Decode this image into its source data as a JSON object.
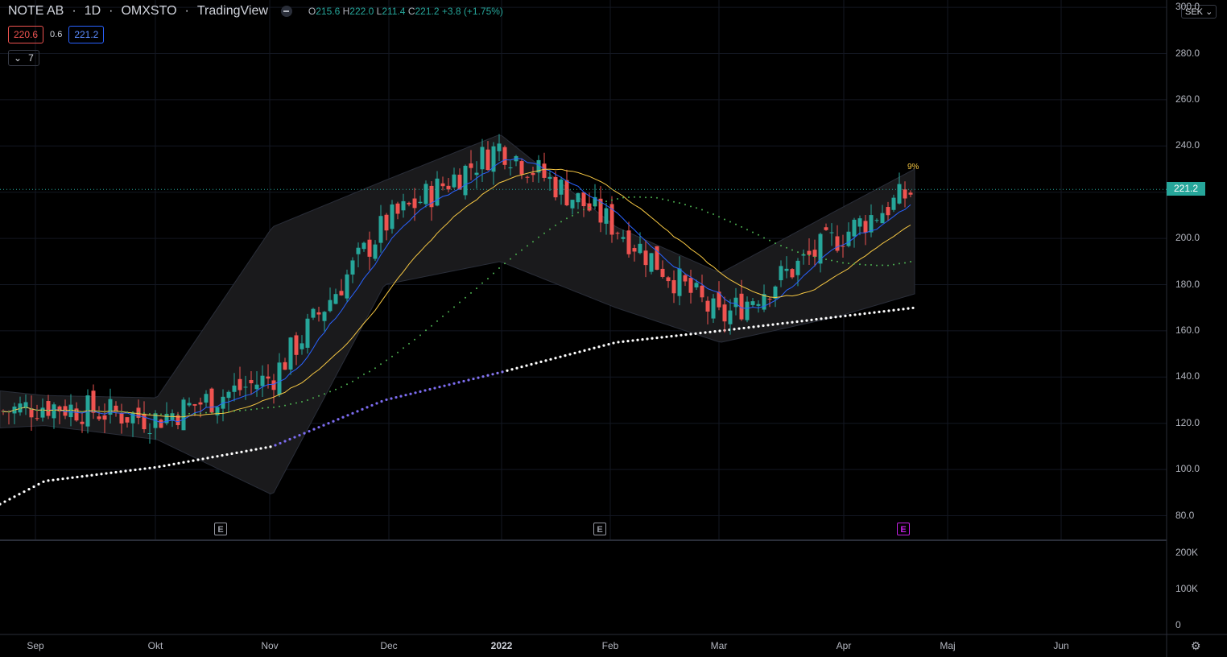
{
  "header": {
    "symbol": "NOTE AB",
    "interval": "1D",
    "exchange": "OMXSTO",
    "source": "TradingView",
    "sep1": "·",
    "sep2": "·",
    "sep3": "·",
    "ohlc": {
      "open_label": "O",
      "open": "215.6",
      "high_label": "H",
      "high": "222.0",
      "low_label": "L",
      "low": "211.4",
      "close_label": "C",
      "close": "221.2",
      "change": "+3.8 (+1.75%)"
    }
  },
  "bid_ask": {
    "bid": "220.6",
    "spread": "0.6",
    "ask": "221.2"
  },
  "indicators_collapse": {
    "count": "7",
    "icon": "chevron-down-icon"
  },
  "currency": {
    "label": "SEK",
    "icon": "chevron-down-icon"
  },
  "price_axis": {
    "labels": [
      "300.0",
      "280.0",
      "260.0",
      "240.0",
      "220.0",
      "200.0",
      "180.0",
      "160.0",
      "140.0",
      "120.0",
      "100.0",
      "80.0"
    ],
    "last_price": "221.2"
  },
  "volume_axis": {
    "labels": [
      "200K",
      "100K",
      "0"
    ]
  },
  "time_axis": {
    "labels": [
      "Sep",
      "Okt",
      "Nov",
      "Dec",
      "2022",
      "Jan",
      "Feb",
      "Mar",
      "Apr",
      "Maj",
      "Jun"
    ]
  },
  "annotations": {
    "pct_label": "9%",
    "earnings_badge": "E"
  },
  "colors": {
    "up": "#26a69a",
    "down": "#ef5350",
    "ma_fast": "#2962ff",
    "ma_mid": "#f7c843",
    "ma_slow": "#4caf50",
    "ma_long_start": "#7c6cf0",
    "ma_long_end": "#ffffff",
    "bb_fill": "#1a1a1c",
    "grid": "#131722"
  },
  "chart_data": {
    "type": "line",
    "title": "NOTE AB · 1D · OMXSTO",
    "ylim": [
      70,
      305
    ],
    "last_close": 221.2,
    "x_dates": [
      "2021-08-20",
      "2021-09-01",
      "2021-10-01",
      "2021-11-01",
      "2021-12-01",
      "2022-01-01",
      "2022-02-01",
      "2022-03-01",
      "2022-04-01",
      "2022-04-22"
    ],
    "series": [
      {
        "role": "price",
        "values": [
          125,
          128,
          122,
          140,
          206,
          240,
          205,
          165,
          200,
          221
        ]
      },
      {
        "role": "bollinger_upper",
        "values": [
          134,
          132,
          131,
          205,
          225,
          245,
          205,
          185,
          212,
          230
        ]
      },
      {
        "role": "bollinger_lower",
        "values": [
          118,
          119,
          113,
          89,
          180,
          190,
          170,
          155,
          166,
          176
        ]
      },
      {
        "role": "long_ma",
        "values": [
          85,
          95,
          101,
          110,
          130,
          142,
          155,
          160,
          166,
          170
        ]
      }
    ],
    "earnings_dates": [
      "2021-10-20",
      "2022-01-31",
      "2022-04-22"
    ]
  }
}
